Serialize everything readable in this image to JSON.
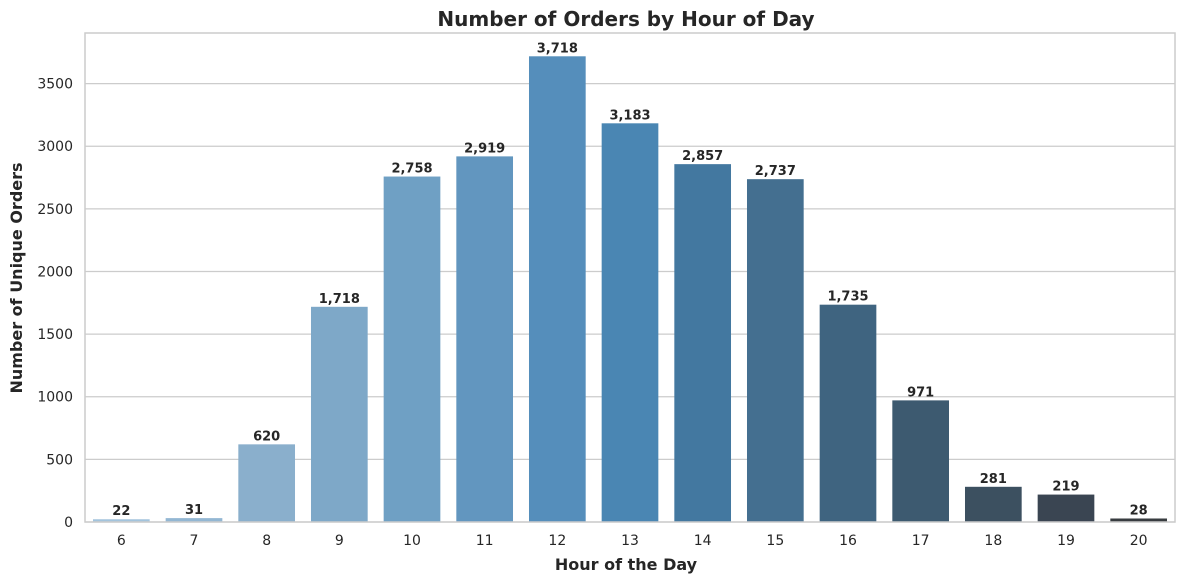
{
  "chart_data": {
    "type": "bar",
    "title": "Number of Orders by Hour of Day",
    "xlabel": "Hour of the Day",
    "ylabel": "Number of Unique Orders",
    "categories": [
      "6",
      "7",
      "8",
      "9",
      "10",
      "11",
      "12",
      "13",
      "14",
      "15",
      "16",
      "17",
      "18",
      "19",
      "20"
    ],
    "values": [
      22,
      31,
      620,
      1718,
      2758,
      2919,
      3718,
      3183,
      2857,
      2737,
      1735,
      971,
      281,
      219,
      28
    ],
    "data_labels": [
      "22",
      "31",
      "620",
      "1,718",
      "2,758",
      "2,919",
      "3,718",
      "3,183",
      "2,857",
      "2,737",
      "1,735",
      "971",
      "281",
      "219",
      "28"
    ],
    "colors": [
      "#a3c4dd",
      "#93b7d3",
      "#8aafcc",
      "#7ea8c8",
      "#6fa0c4",
      "#6296bf",
      "#558ebb",
      "#4a86b3",
      "#4378a0",
      "#446f90",
      "#3f6480",
      "#3d5a70",
      "#3c5060",
      "#3a4552",
      "#383c40"
    ],
    "yticks": [
      0,
      500,
      1000,
      1500,
      2000,
      2500,
      3000,
      3500
    ],
    "ylim": [
      0,
      3904
    ],
    "grid": true
  }
}
